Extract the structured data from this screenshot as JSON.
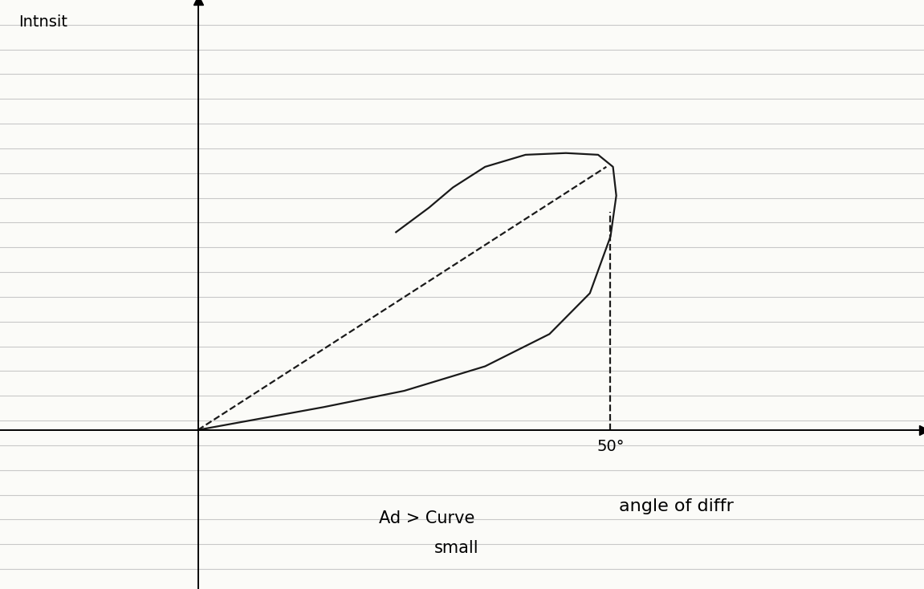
{
  "chart_data": {
    "type": "line",
    "x_label": "angle of diffr",
    "y_label": "Intnsit",
    "annotations": [
      "Ad > Curve",
      "small"
    ],
    "series": [
      {
        "x": [
          0,
          15.2,
          25,
          34.8,
          42.6,
          47.5,
          50,
          50.7,
          50.3,
          48.5,
          44.6,
          39.7,
          34.8,
          30.9,
          28,
          24
        ],
        "values": [
          0,
          5.3,
          9.1,
          14.8,
          22.3,
          31.8,
          45,
          54.5,
          61.2,
          64,
          64.4,
          64,
          61.2,
          56.4,
          51.7,
          46
        ],
        "color": "#1a1a1a",
        "line_style": "solid"
      },
      {
        "x": [
          0,
          49.5
        ],
        "values": [
          0,
          61.2
        ],
        "color": "#1a1a1a",
        "line_style": "dashed"
      },
      {
        "x": [
          50,
          50
        ],
        "values": [
          0,
          50.8
        ],
        "color": "#1a1a1a",
        "line_style": "dashed"
      }
    ],
    "xlim": [
      -24,
      88
    ],
    "ylim": [
      -37,
      100
    ],
    "xticks": [
      {
        "value": 50,
        "label": "50°"
      }
    ],
    "yticks": [],
    "tick_labels": "x",
    "grid": false
  }
}
